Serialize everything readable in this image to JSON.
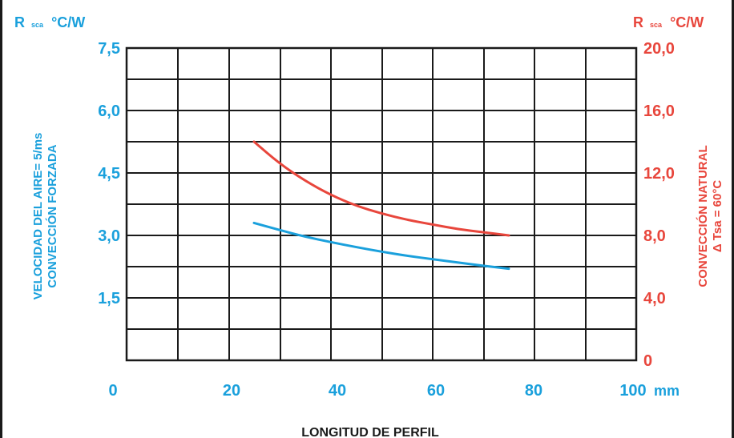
{
  "chart_data": {
    "type": "line",
    "x_ticks": [
      "0",
      "20",
      "40",
      "60",
      "80",
      "100"
    ],
    "x_unit": "mm",
    "x_range": [
      0,
      100
    ],
    "xlabel": "LONGITUD DE PERFIL",
    "left_axis": {
      "unit_main": "R",
      "unit_sub": "sca",
      "unit_tail": "°C/W",
      "ticks": [
        "7,5",
        "6,0",
        "4,5",
        "3,0",
        "1,5"
      ],
      "range": [
        0,
        7.5
      ],
      "label_line1": "VELOCIDAD DEL AIRE= 5/ms",
      "label_line2": "CONVECCIÓN FORZADA",
      "color": "#1aa0dc"
    },
    "right_axis": {
      "unit_main": "R",
      "unit_sub": "sca",
      "unit_tail": "°C/W",
      "ticks": [
        "20,0",
        "16,0",
        "12,0",
        "8,0",
        "4,0",
        "0"
      ],
      "range": [
        0,
        20
      ],
      "label_line1": "CONVECCIÓN NATURAL",
      "label_line2": "Δ Tsa = 60°C",
      "color": "#e8463c"
    },
    "grid": true,
    "series": [
      {
        "axis": "left",
        "color": "#1aa0dc",
        "x": [
          25,
          30,
          35,
          40,
          45,
          50,
          55,
          60,
          65,
          70,
          75
        ],
        "y": [
          3.3,
          3.13,
          2.97,
          2.84,
          2.72,
          2.61,
          2.51,
          2.43,
          2.35,
          2.27,
          2.2
        ]
      },
      {
        "axis": "right",
        "color": "#e8463c",
        "x": [
          25,
          30,
          35,
          40,
          45,
          50,
          55,
          60,
          65,
          70,
          75
        ],
        "y": [
          14.0,
          12.6,
          11.5,
          10.6,
          9.9,
          9.4,
          9.0,
          8.7,
          8.4,
          8.2,
          8.0
        ]
      }
    ]
  }
}
